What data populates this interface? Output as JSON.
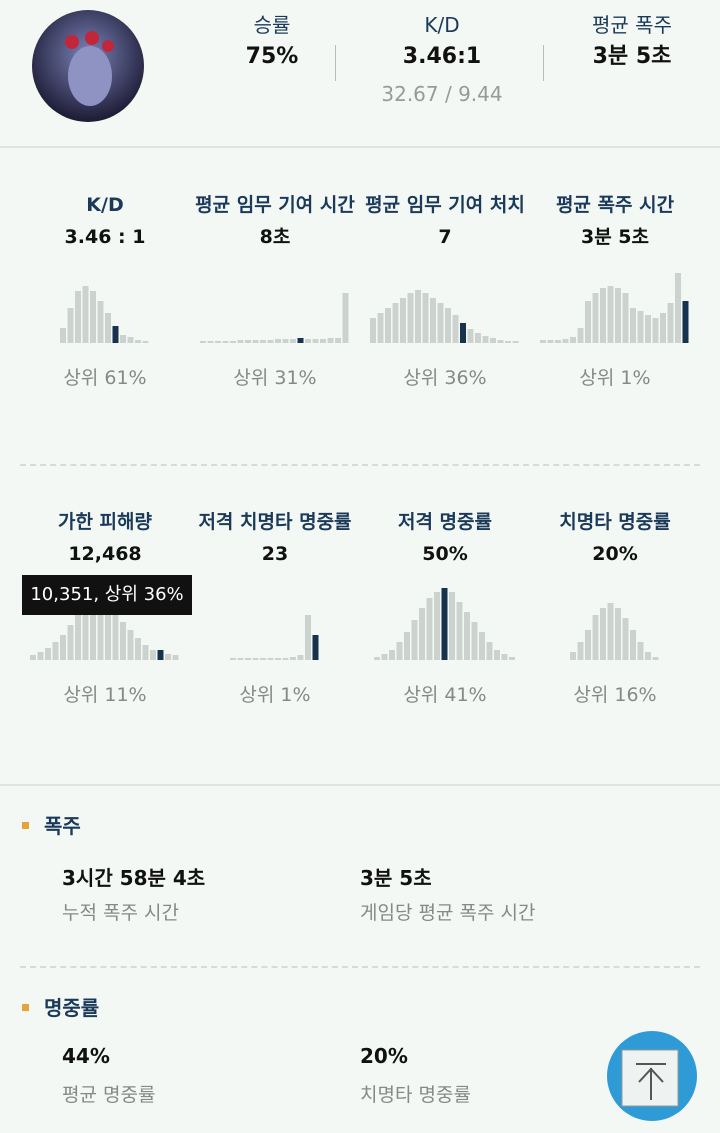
{
  "header": {
    "stats": [
      {
        "label": "승률",
        "value": "75%"
      },
      {
        "label": "K/D",
        "value": "3.46:1",
        "detail": "32.67 / 9.44"
      },
      {
        "label": "평균 폭주",
        "value": "3분 5초"
      }
    ]
  },
  "card_rows": [
    [
      {
        "title": "K/D",
        "value": "3.46 : 1",
        "histogram": {
          "values": [
            15,
            35,
            52,
            57,
            52,
            42,
            30,
            17,
            8,
            6,
            3,
            2
          ],
          "highlight": 7
        },
        "percentile": "상위 61%"
      },
      {
        "title": "평균 임무 기여 시간",
        "value": "8초",
        "histogram": {
          "values": [
            2,
            2,
            2,
            2,
            2,
            3,
            3,
            3,
            3,
            3,
            4,
            4,
            4,
            5,
            4,
            4,
            4,
            5,
            5,
            50
          ],
          "highlight": 13
        },
        "percentile": "상위 31%"
      },
      {
        "title": "평균 임무 기여 처치",
        "value": "7",
        "histogram": {
          "values": [
            25,
            30,
            35,
            40,
            45,
            50,
            53,
            50,
            45,
            40,
            35,
            28,
            20,
            14,
            10,
            7,
            5,
            3,
            2,
            2
          ],
          "highlight": 12
        },
        "percentile": "상위 36%"
      },
      {
        "title": "평균 폭주 시간",
        "value": "3분 5초",
        "histogram": {
          "values": [
            3,
            3,
            3,
            4,
            6,
            15,
            42,
            50,
            55,
            57,
            55,
            50,
            35,
            32,
            28,
            25,
            30,
            40,
            70,
            42
          ],
          "highlight": 19
        },
        "percentile": "상위 1%"
      }
    ],
    [
      {
        "title": "가한 피해량",
        "value": "12,468",
        "histogram": {
          "values": [
            5,
            8,
            12,
            18,
            25,
            35,
            45,
            52,
            55,
            55,
            52,
            45,
            38,
            30,
            22,
            15,
            10,
            10,
            6,
            5
          ],
          "highlight": 17
        },
        "percentile": "상위 11%"
      },
      {
        "title": "저격 치명타 명중률",
        "value": "23",
        "histogram": {
          "values": [
            2,
            2,
            2,
            2,
            2,
            2,
            2,
            2,
            3,
            5,
            45,
            25
          ],
          "highlight": 11
        },
        "percentile": "상위 1%"
      },
      {
        "title": "저격 명중률",
        "value": "50%",
        "histogram": {
          "values": [
            3,
            6,
            10,
            18,
            28,
            40,
            52,
            62,
            68,
            72,
            68,
            58,
            48,
            38,
            28,
            18,
            10,
            6,
            3
          ],
          "highlight": 9
        },
        "percentile": "상위 41%"
      },
      {
        "title": "치명타 명중률",
        "value": "20%",
        "histogram": {
          "values": [
            8,
            18,
            30,
            45,
            52,
            57,
            52,
            42,
            30,
            18,
            8,
            3
          ]
        },
        "percentile": "상위 16%"
      }
    ]
  ],
  "tooltip": "10,351, 상위 36%",
  "sections": [
    {
      "title": "폭주",
      "items": [
        {
          "value": "3시간 58분 4초",
          "label": "누적 폭주 시간"
        },
        {
          "value": "3분 5초",
          "label": "게임당 평균 폭주 시간"
        }
      ]
    },
    {
      "title": "명중률",
      "items": [
        {
          "value": "44%",
          "label": "평균 명중률"
        },
        {
          "value": "20%",
          "label": "치명타 명중률"
        }
      ]
    }
  ]
}
